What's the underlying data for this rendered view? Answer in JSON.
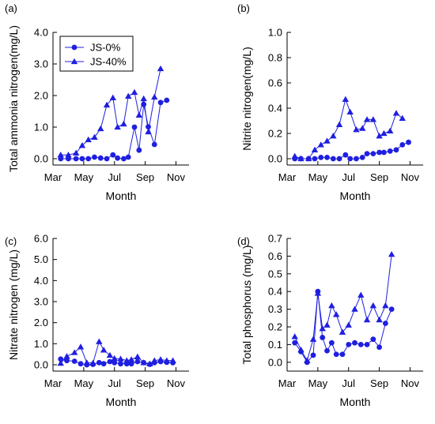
{
  "xlabel": "Month",
  "legend": {
    "series_names": [
      "JS-0%",
      "JS-40%"
    ],
    "placement": "top-left of panel (a)"
  },
  "series_color": "#1f1fe0",
  "chart_data": [
    {
      "type": "line",
      "panel_label": "(a)",
      "title": "",
      "xlabel": "Month",
      "ylabel": "Total ammonia nitrogen(mg/L)",
      "x_ticks": [
        "Mar",
        "May",
        "Jul",
        "Sep",
        "Nov"
      ],
      "y_ticks": [
        "0.0",
        "1.0",
        "2.0",
        "3.0",
        "4.0"
      ],
      "xlim": [
        3,
        11.85
      ],
      "ylim": [
        -0.2,
        4.0
      ],
      "grid": false,
      "series": [
        {
          "name": "JS-0%",
          "marker": "circle",
          "x": [
            3.5,
            4.0,
            4.5,
            4.9,
            5.3,
            5.7,
            6.1,
            6.5,
            6.9,
            7.2,
            7.6,
            7.9,
            8.3,
            8.6,
            8.9,
            9.2,
            9.6,
            10.0,
            10.4,
            10.8,
            11.2
          ],
          "values": [
            0.0,
            0.0,
            0.0,
            0.0,
            0.0,
            0.05,
            0.02,
            0.0,
            0.12,
            0.02,
            0.0,
            0.05,
            1.0,
            0.27,
            1.72,
            1.01,
            0.45,
            1.78,
            1.85,
            null,
            null
          ]
        },
        {
          "name": "JS-40%",
          "marker": "triangle",
          "x": [
            3.5,
            4.0,
            4.5,
            4.9,
            5.3,
            5.7,
            6.1,
            6.5,
            6.9,
            7.2,
            7.6,
            7.9,
            8.3,
            8.6,
            8.9,
            9.2,
            9.6,
            10.0,
            10.4
          ],
          "values": [
            0.12,
            0.12,
            0.18,
            0.42,
            0.6,
            0.68,
            0.95,
            1.7,
            1.93,
            1.0,
            1.1,
            1.98,
            2.1,
            1.38,
            1.9,
            0.85,
            1.95,
            2.85,
            null
          ]
        }
      ]
    },
    {
      "type": "line",
      "panel_label": "(b)",
      "title": "",
      "xlabel": "Month",
      "ylabel": "Nitrite nitrogen(mg/L)",
      "x_ticks": [
        "Mar",
        "May",
        "Jul",
        "Sep",
        "Nov"
      ],
      "y_ticks": [
        "0.0",
        "0.2",
        "0.4",
        "0.6",
        "0.8",
        "1.0"
      ],
      "xlim": [
        3,
        11.85
      ],
      "ylim": [
        -0.05,
        1.0
      ],
      "grid": false,
      "series": [
        {
          "name": "JS-0%",
          "marker": "circle",
          "x": [
            3.5,
            3.9,
            4.4,
            4.8,
            5.2,
            5.6,
            6.0,
            6.4,
            6.8,
            7.1,
            7.5,
            7.9,
            8.2,
            8.6,
            9.0,
            9.3,
            9.7,
            10.1,
            10.5,
            10.9,
            11.3
          ],
          "values": [
            0.0,
            0.0,
            0.0,
            0.0,
            0.01,
            0.01,
            0.0,
            0.0,
            0.03,
            0.0,
            0.0,
            0.01,
            0.04,
            0.04,
            0.05,
            0.05,
            0.06,
            0.07,
            0.11,
            0.13,
            null
          ]
        },
        {
          "name": "JS-40%",
          "marker": "triangle",
          "x": [
            3.5,
            3.9,
            4.4,
            4.8,
            5.2,
            5.6,
            6.0,
            6.4,
            6.8,
            7.1,
            7.5,
            7.9,
            8.2,
            8.6,
            9.0,
            9.3,
            9.7,
            10.1,
            10.5,
            10.9
          ],
          "values": [
            0.02,
            0.0,
            0.0,
            0.07,
            0.11,
            0.14,
            0.18,
            0.27,
            0.47,
            0.37,
            0.23,
            0.24,
            0.31,
            0.31,
            0.18,
            0.2,
            0.22,
            0.36,
            0.32,
            null
          ]
        }
      ]
    },
    {
      "type": "line",
      "panel_label": "(c)",
      "title": "",
      "xlabel": "Month",
      "ylabel": "Nitrate nitrogen (mg/L)",
      "x_ticks": [
        "Mar",
        "May",
        "Jul",
        "Sep",
        "Nov"
      ],
      "y_ticks": [
        "0.0",
        "1.0",
        "2.0",
        "3.0",
        "4.0",
        "5.0",
        "6.0"
      ],
      "xlim": [
        3,
        11.85
      ],
      "ylim": [
        -0.3,
        6.0
      ],
      "grid": false,
      "series": [
        {
          "name": "JS-0%",
          "marker": "circle",
          "x": [
            3.5,
            3.9,
            4.4,
            4.8,
            5.2,
            5.6,
            6.0,
            6.3,
            6.7,
            7.0,
            7.4,
            7.8,
            8.1,
            8.5,
            8.9,
            9.3,
            9.6,
            10.0,
            10.4,
            10.8,
            11.2
          ],
          "values": [
            0.27,
            0.2,
            0.17,
            0.05,
            0.0,
            0.02,
            0.1,
            0.05,
            0.15,
            0.1,
            0.05,
            0.05,
            0.05,
            0.15,
            0.1,
            0.02,
            0.1,
            0.15,
            0.12,
            0.1,
            null
          ]
        },
        {
          "name": "JS-40%",
          "marker": "triangle",
          "x": [
            3.5,
            3.9,
            4.4,
            4.8,
            5.2,
            5.6,
            6.0,
            6.3,
            6.7,
            7.0,
            7.4,
            7.8,
            8.1,
            8.5,
            8.9,
            9.3,
            9.6,
            10.0,
            10.4,
            10.8,
            11.2
          ],
          "values": [
            0.07,
            0.4,
            0.58,
            0.85,
            0.1,
            0.08,
            1.1,
            0.7,
            0.45,
            0.3,
            0.28,
            0.2,
            0.25,
            0.38,
            0.1,
            0.05,
            0.2,
            0.25,
            0.2,
            0.2,
            null
          ]
        }
      ]
    },
    {
      "type": "line",
      "panel_label": "(d)",
      "title": "",
      "xlabel": "Month",
      "ylabel": "Total phosphorus (mg/L)",
      "x_ticks": [
        "Mar",
        "May",
        "Jul",
        "Sep",
        "Nov"
      ],
      "y_ticks": [
        "0.0",
        "0.1",
        "0.2",
        "0.3",
        "0.4",
        "0.5",
        "0.6",
        "0.7"
      ],
      "xlim": [
        3,
        11.85
      ],
      "ylim": [
        -0.05,
        0.7
      ],
      "grid": false,
      "series": [
        {
          "name": "JS-0%",
          "marker": "circle",
          "x": [
            3.5,
            3.9,
            4.3,
            4.7,
            5.0,
            5.3,
            5.6,
            5.9,
            6.2,
            6.6,
            7.0,
            7.4,
            7.8,
            8.2,
            8.6,
            9.0,
            9.4,
            9.8,
            10.2,
            10.6,
            10.9
          ],
          "values": [
            0.11,
            0.06,
            0.0,
            0.04,
            0.4,
            0.14,
            0.065,
            0.11,
            0.045,
            0.045,
            0.1,
            0.11,
            0.1,
            0.1,
            0.13,
            0.085,
            0.22,
            0.3,
            null,
            null,
            null
          ]
        },
        {
          "name": "JS-40%",
          "marker": "triangle",
          "x": [
            3.5,
            3.9,
            4.3,
            4.7,
            5.0,
            5.3,
            5.6,
            5.9,
            6.2,
            6.6,
            7.0,
            7.4,
            7.8,
            8.2,
            8.6,
            9.0,
            9.4,
            9.8,
            10.2,
            10.6
          ],
          "values": [
            0.145,
            0.07,
            0.01,
            0.13,
            0.39,
            0.19,
            0.21,
            0.32,
            0.27,
            0.17,
            0.21,
            0.3,
            0.38,
            0.24,
            0.32,
            0.24,
            0.32,
            0.61,
            null,
            null
          ]
        }
      ]
    }
  ]
}
